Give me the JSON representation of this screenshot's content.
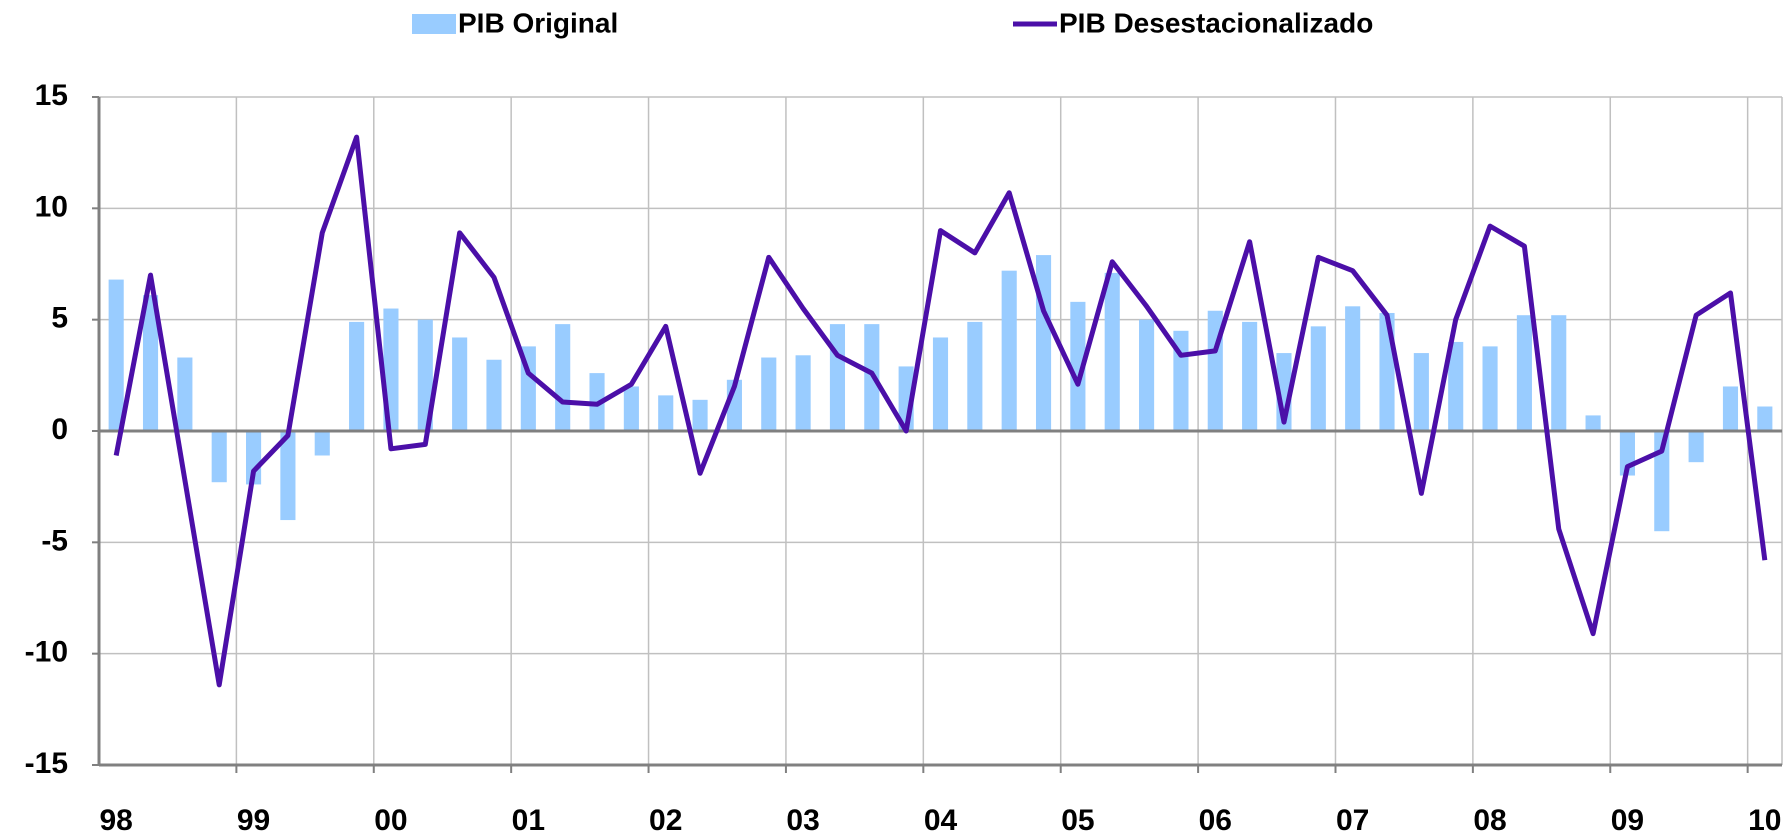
{
  "chart_data": {
    "type": "bar_line",
    "categories": [
      "98",
      null,
      null,
      null,
      "99",
      null,
      null,
      null,
      "00",
      null,
      null,
      null,
      "01",
      null,
      null,
      null,
      "02",
      null,
      null,
      null,
      "03",
      null,
      null,
      null,
      "04",
      null,
      null,
      null,
      "05",
      null,
      null,
      null,
      "06",
      null,
      null,
      null,
      "07",
      null,
      null,
      null,
      "08",
      null,
      null,
      null,
      "09",
      null,
      null,
      null,
      "10"
    ],
    "series": [
      {
        "name": "PIB Original",
        "type": "bar",
        "color": "#99ccff",
        "values": [
          6.8,
          6.1,
          3.3,
          -2.3,
          -2.4,
          -4.0,
          -1.1,
          4.9,
          5.5,
          5.0,
          4.2,
          3.2,
          3.8,
          4.8,
          2.6,
          2.0,
          1.6,
          1.4,
          2.3,
          3.3,
          3.4,
          4.8,
          4.8,
          2.9,
          4.2,
          4.9,
          7.2,
          7.9,
          5.8,
          7.1,
          5.0,
          4.5,
          5.4,
          4.9,
          3.5,
          4.7,
          5.6,
          5.3,
          3.5,
          4.0,
          3.8,
          5.2,
          5.2,
          0.7,
          -2.0,
          -4.5,
          -1.4,
          2.0,
          1.1
        ]
      },
      {
        "name": "PIB Desestacionalizado",
        "type": "line",
        "color": "#4b0fa8",
        "values": [
          -1.1,
          7.0,
          -2.2,
          -11.4,
          -1.8,
          -0.2,
          8.9,
          13.2,
          -0.8,
          -0.6,
          8.9,
          6.9,
          2.6,
          1.3,
          1.2,
          2.1,
          4.7,
          -1.9,
          2.0,
          7.8,
          5.5,
          3.4,
          2.6,
          0.0,
          9.0,
          8.0,
          10.7,
          5.4,
          2.1,
          7.6,
          5.6,
          3.4,
          3.6,
          8.5,
          0.4,
          7.8,
          7.2,
          5.2,
          -2.8,
          5.0,
          9.2,
          8.3,
          -4.4,
          -9.1,
          -1.6,
          -0.9,
          5.2,
          6.2,
          -5.8
        ]
      }
    ],
    "ylim": [
      -15,
      15
    ],
    "yticks": [
      -15,
      -10,
      -5,
      0,
      5,
      10,
      15
    ],
    "grid": true
  }
}
